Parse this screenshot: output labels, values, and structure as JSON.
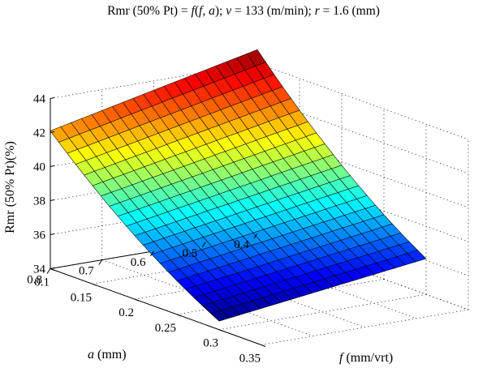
{
  "chart_data": {
    "type": "surface",
    "title": {
      "segments": [
        {
          "text": "Rmr (50% Pt) = ",
          "italic": false
        },
        {
          "text": "f",
          "italic": true
        },
        {
          "text": "(",
          "italic": false
        },
        {
          "text": "f",
          "italic": true
        },
        {
          "text": ", ",
          "italic": false
        },
        {
          "text": "a",
          "italic": true
        },
        {
          "text": "); ",
          "italic": false
        },
        {
          "text": "v",
          "italic": true
        },
        {
          "text": " = 133 (m/min); ",
          "italic": false
        },
        {
          "text": "r",
          "italic": true
        },
        {
          "text": " = 1.6 (mm)",
          "italic": false
        }
      ]
    },
    "zlabel": "Rmr (50% Pt)(%)",
    "xlabel": {
      "var": "a",
      "unit": " (mm)"
    },
    "ylabel": {
      "var": "f",
      "unit": " (mm/vrt)"
    },
    "a_range": [
      0.4,
      0.8
    ],
    "f_range": [
      0.1,
      0.35
    ],
    "z_range": [
      34,
      44
    ],
    "a_ticks": [
      "0.4",
      "0.5",
      "0.6",
      "0.7",
      "0.8"
    ],
    "f_ticks": [
      "0.1",
      "0.15",
      "0.2",
      "0.25",
      "0.3",
      "0.35"
    ],
    "z_ticks": [
      "34",
      "36",
      "38",
      "40",
      "42",
      "44"
    ],
    "a_data_range": [
      0.4,
      0.8
    ],
    "f_data_range": [
      0.1,
      0.3
    ],
    "grid": true,
    "colormap": "jet",
    "corner_values": {
      "a0.4_f0.1": 44.8,
      "a0.8_f0.1": 42.1,
      "a0.4_f0.3": 36.1,
      "a0.8_f0.3": 34.5
    },
    "mesh": {
      "a_count": 20,
      "f_count": 20
    }
  }
}
